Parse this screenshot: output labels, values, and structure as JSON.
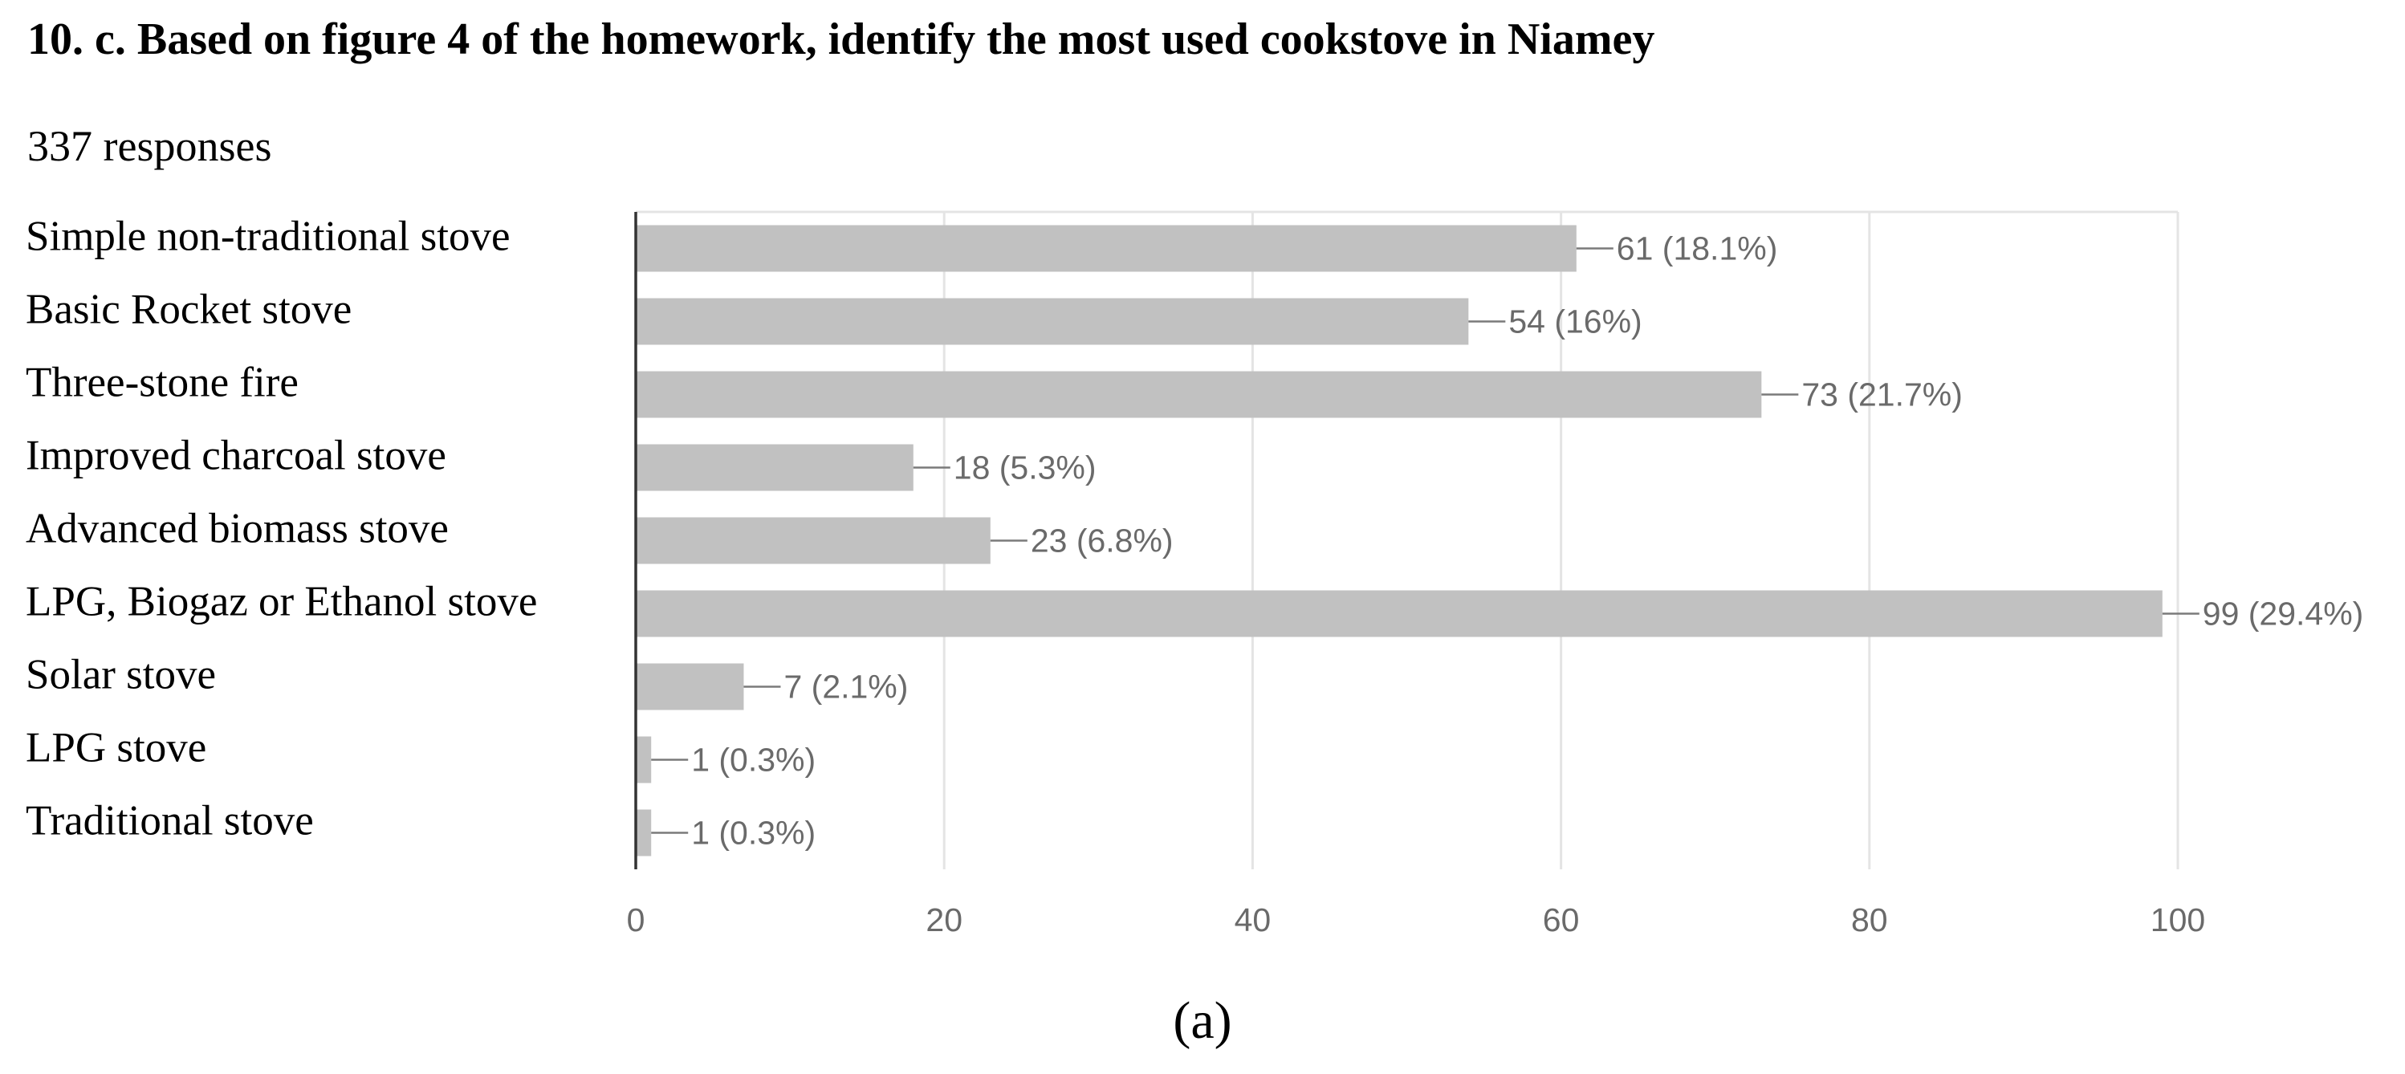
{
  "question": {
    "title": "10. c. Based on figure 4 of the homework, identify the most used cookstove in Niamey",
    "responses": "337 responses"
  },
  "chart_data": {
    "type": "bar",
    "orientation": "horizontal",
    "categories": [
      "Simple non-traditional stove",
      "Basic Rocket stove",
      "Three-stone fire",
      "Improved charcoal stove",
      "Advanced biomass stove",
      "LPG, Biogaz or Ethanol stove",
      "Solar stove",
      "LPG stove",
      "Traditional stove"
    ],
    "values": [
      61,
      54,
      73,
      18,
      23,
      99,
      7,
      1,
      1
    ],
    "data_labels": [
      "61 (18.1%)",
      "54 (16%)",
      "73 (21.7%)",
      "18 (5.3%)",
      "23 (6.8%)",
      "99 (29.4%)",
      "7 (2.1%)",
      "1 (0.3%)",
      "1 (0.3%)"
    ],
    "xlim": [
      0,
      100
    ],
    "xticks": [
      0,
      20,
      40,
      60,
      80,
      100
    ],
    "grid": true,
    "bar_color": "#c1c1c1",
    "grid_color": "#e4e4e4",
    "label_color": "#6a6a6a"
  },
  "panel_label": "(a)"
}
